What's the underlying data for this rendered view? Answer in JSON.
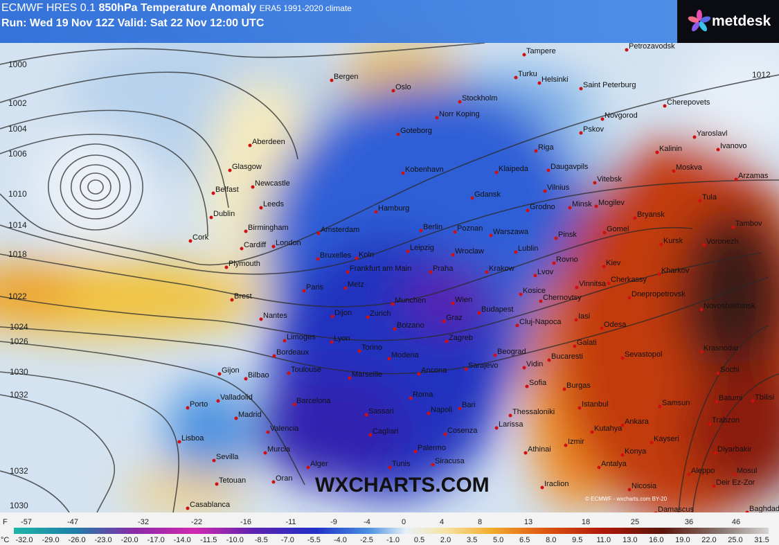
{
  "header": {
    "model": "ECMWF HRES 0.1",
    "title": "850hPa Temperature Anomaly",
    "climate": "ERA5 1991-2020 climate",
    "run": "Run: Wed 19 Nov 12Z Valid: Sat 22 Nov 12:00 UTC"
  },
  "logo": "metdesk",
  "watermark": "WXCHARTS.COM",
  "credit": "© ECMWF - wxcharts.com BY-20",
  "isobar_labels": [
    1000,
    1002,
    1004,
    1006,
    1010,
    1014,
    1018,
    1022,
    1024,
    1026,
    1030,
    1032,
    1032,
    1030,
    1012
  ],
  "cities": [
    "Tampere",
    "Petrozavodsk",
    "Bergen",
    "Oslo",
    "Turku",
    "Helsinki",
    "Saint Peterburg",
    "Stockholm",
    "Norr Koping",
    "Cherepovets",
    "Novgorod",
    "Goteborg",
    "Pskov",
    "Yaroslavl",
    "Ivanovo",
    "Aberdeen",
    "Riga",
    "Kalinin",
    "Glasgow",
    "Kobenhavn",
    "Klaipeda",
    "Daugavpils",
    "Moskva",
    "Arzamas",
    "Belfast",
    "Newcastle",
    "Vitebsk",
    "Gdansk",
    "Vilnius",
    "Tula",
    "Dublin",
    "Leeds",
    "Hamburg",
    "Minsk",
    "Mogilev",
    "Bryansk",
    "Grodno",
    "Birmingham",
    "Amsterdam",
    "Berlin",
    "Poznan",
    "Warszawa",
    "Gomel",
    "Tambov",
    "Cork",
    "Cardiff",
    "London",
    "Pinsk",
    "Kursk",
    "Voronezh",
    "Plymouth",
    "Bruxelles",
    "Koln",
    "Leipzig",
    "Wroclaw",
    "Lublin",
    "Frankfurt am Main",
    "Praha",
    "Krakow",
    "Rovno",
    "Kiev",
    "Lvov",
    "Kharkov",
    "Paris",
    "Metz",
    "Kosice",
    "Vinnitsa",
    "Cherkassy",
    "Brest",
    "Munchen",
    "Wien",
    "Dnepropetrovsk",
    "Budapest",
    "Chernovtsy",
    "Novoshakhinsk",
    "Nantes",
    "Dijon",
    "Zurich",
    "Graz",
    "Cluj-Napoca",
    "Iasi",
    "Bolzano",
    "Odesa",
    "Limoges",
    "Lyon",
    "Zagreb",
    "Galati",
    "Krasnodar",
    "Bordeaux",
    "Torino",
    "Beograd",
    "Sevastopol",
    "Modena",
    "Vidin",
    "Bucaresti",
    "Sochi",
    "Gijon",
    "Bilbao",
    "Toulouse",
    "Marseille",
    "Ancona",
    "Sarajevo",
    "Sofia",
    "Burgas",
    "Valladolid",
    "Porto",
    "Barcelona",
    "Roma",
    "Bari",
    "Istanbul",
    "Batumi",
    "Tbilisi",
    "Samsun",
    "Madrid",
    "Sassari",
    "Napoli",
    "Thessaloniki",
    "Trabzon",
    "Valencia",
    "Cagliari",
    "Cosenza",
    "Larissa",
    "Ankara",
    "Kutahya",
    "Lisboa",
    "Kayseri",
    "Izmir",
    "Murcia",
    "Palermo",
    "Athinai",
    "Konya",
    "Diyarbakir",
    "Sevilla",
    "Siracusa",
    "Alger",
    "Tunis",
    "Antalya",
    "Aleppo",
    "Mosul",
    "Tetouan",
    "Oran",
    "Iraclion",
    "Nicosia",
    "Deir Ez-Zor",
    "Casablanca",
    "Damascus",
    "Baghdad"
  ],
  "legend": {
    "f_unit": "F",
    "f_labels": [
      -57,
      -47,
      -32,
      -22,
      -16,
      -11,
      -9,
      -4,
      0,
      4,
      8,
      13,
      18,
      25,
      36,
      46
    ],
    "c_unit": "°C",
    "c_labels": [
      "-32.0",
      "-29.0",
      "-26.0",
      "-23.0",
      "-20.0",
      "-17.0",
      "-14.0",
      "-11.5",
      "-10.0",
      "-8.5",
      "-7.0",
      "-5.5",
      "-4.0",
      "-2.5",
      "-1.0",
      "0.5",
      "2.0",
      "3.5",
      "5.0",
      "6.5",
      "8.0",
      "9.5",
      "11.0",
      "13.0",
      "16.0",
      "19.0",
      "22.0",
      "25.0",
      "31.5"
    ]
  }
}
